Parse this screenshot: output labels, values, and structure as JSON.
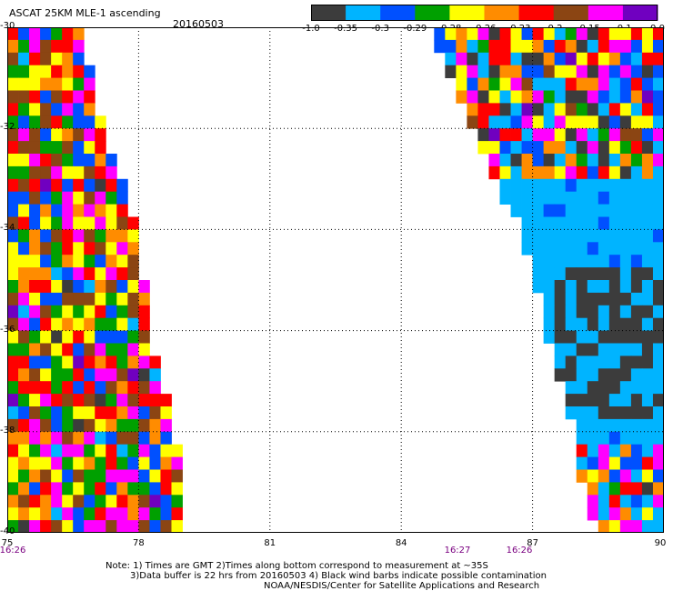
{
  "title": "ASCAT 25KM MLE-1 ascending",
  "date": "20160503",
  "colorbar": {
    "colors": [
      "#3c3c3c",
      "#00b4ff",
      "#0050ff",
      "#00a000",
      "#ffff00",
      "#ff8c00",
      "#ff0000",
      "#8b4513",
      "#ff00ff",
      "#7000c0"
    ],
    "labels": [
      "-1.0",
      "-0.35",
      "-0.3",
      "-0.29",
      "-0.28",
      "-0.26",
      "-0.23",
      "-0.2",
      "-0.15",
      "-0.1",
      "0.0"
    ]
  },
  "axes": {
    "x_ticks": [
      "75",
      "78",
      "81",
      "84",
      "87",
      "90"
    ],
    "y_ticks": [
      "-30",
      "-32",
      "-34",
      "-36",
      "-38",
      "-40"
    ]
  },
  "times": [
    "16:26",
    "16:27",
    "16:26"
  ],
  "notes": {
    "line1": "Note: 1) Times are GMT 2)Times along bottom correspond to measurement at ~35S",
    "line2": "3)Data buffer is 22 hrs from 20160503 4) Black wind barbs indicate possible contamination",
    "line3": "NOAA/NESDIS/Center for Satellite Applications and Research"
  },
  "map": {
    "lon_range": [
      75,
      90
    ],
    "lat_range": [
      -40,
      -30
    ],
    "grid_step_lon": 3,
    "grid_step_lat": 2,
    "swaths": [
      {
        "name": "west-swath",
        "lat_edges": [
          -30,
          -31,
          -32,
          -33,
          -34,
          -35,
          -36,
          -37,
          -38,
          -39,
          -40
        ],
        "lon_east_edge": [
          76.6,
          76.8,
          77.1,
          77.5,
          77.8,
          78.0,
          78.1,
          78.4,
          78.7,
          78.9,
          79.0
        ],
        "dominant_classes": [
          4,
          5,
          6,
          7,
          8,
          3,
          2
        ]
      },
      {
        "name": "east-swath",
        "lat_edges": [
          -30,
          -31,
          -32,
          -33,
          -34,
          -35,
          -36,
          -37,
          -38,
          -39,
          -40
        ],
        "lon_west_edge": [
          84.5,
          85.0,
          85.5,
          86.0,
          86.6,
          86.9,
          87.2,
          87.5,
          87.8,
          88.0,
          88.3
        ],
        "dominant_classes": [
          1,
          0,
          2,
          4,
          5,
          6,
          8
        ]
      }
    ]
  }
}
